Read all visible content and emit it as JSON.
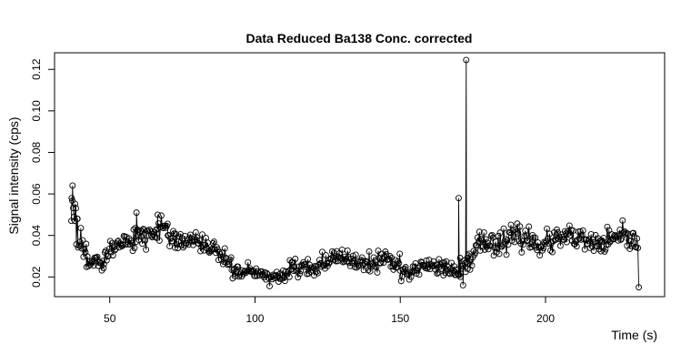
{
  "chart_data": {
    "type": "line",
    "title": "Data Reduced Ba138 Conc. corrected",
    "xlabel": "Time (s)",
    "ylabel": "Signal intensity (cps)",
    "xlim": [
      31,
      241
    ],
    "ylim": [
      0.0105,
      0.128
    ],
    "x_ticks": [
      50,
      100,
      150,
      200
    ],
    "y_ticks": [
      0.02,
      0.04,
      0.06,
      0.08,
      0.1,
      0.12
    ],
    "y_tick_labels": [
      "0.02",
      "0.04",
      "0.06",
      "0.08",
      "0.10",
      "0.12"
    ],
    "grid": false,
    "markers": "open-circle",
    "sample_interval_s": 0.31,
    "x_start": 36.8,
    "segments": [
      {
        "t0": 36.8,
        "t1": 38.5,
        "level": [
          0.05,
          0.055
        ],
        "noise": 0.008,
        "seed": 11
      },
      {
        "t0": 38.5,
        "t1": 42.0,
        "level": [
          0.04,
          0.03
        ],
        "noise": 0.006,
        "seed": 12
      },
      {
        "t0": 42.0,
        "t1": 48.0,
        "level": [
          0.028,
          0.028
        ],
        "noise": 0.0035,
        "seed": 13
      },
      {
        "t0": 48.0,
        "t1": 60.0,
        "level": [
          0.031,
          0.041
        ],
        "noise": 0.0035,
        "seed": 14
      },
      {
        "t0": 60.0,
        "t1": 70.0,
        "level": [
          0.042,
          0.042
        ],
        "noise": 0.0035,
        "seed": 15
      },
      {
        "t0": 70.0,
        "t1": 80.0,
        "level": [
          0.04,
          0.037
        ],
        "noise": 0.0035,
        "seed": 16
      },
      {
        "t0": 80.0,
        "t1": 92.0,
        "level": [
          0.036,
          0.03
        ],
        "noise": 0.0035,
        "seed": 17
      },
      {
        "t0": 92.0,
        "t1": 112.0,
        "level": [
          0.021,
          0.021
        ],
        "noise": 0.0025,
        "seed": 18
      },
      {
        "t0": 112.0,
        "t1": 130.0,
        "level": [
          0.023,
          0.03
        ],
        "noise": 0.003,
        "seed": 19
      },
      {
        "t0": 130.0,
        "t1": 150.0,
        "level": [
          0.029,
          0.026
        ],
        "noise": 0.0035,
        "seed": 20
      },
      {
        "t0": 150.0,
        "t1": 170.0,
        "level": [
          0.023,
          0.025
        ],
        "noise": 0.003,
        "seed": 21
      },
      {
        "t0": 170.0,
        "t1": 176.0,
        "level": [
          0.022,
          0.03
        ],
        "noise": 0.004,
        "seed": 22
      },
      {
        "t0": 176.0,
        "t1": 232.0,
        "level": [
          0.038,
          0.037
        ],
        "noise": 0.004,
        "seed": 23
      }
    ],
    "spikes": [
      {
        "x": 36.9,
        "y": 0.058
      },
      {
        "x": 37.2,
        "y": 0.064
      },
      {
        "x": 38.0,
        "y": 0.047
      },
      {
        "x": 38.9,
        "y": 0.048
      },
      {
        "x": 59.2,
        "y": 0.051
      },
      {
        "x": 66.5,
        "y": 0.05
      },
      {
        "x": 170.1,
        "y": 0.058
      },
      {
        "x": 170.7,
        "y": 0.02
      },
      {
        "x": 171.6,
        "y": 0.016
      },
      {
        "x": 172.7,
        "y": 0.1245
      },
      {
        "x": 173.2,
        "y": 0.024
      },
      {
        "x": 232.1,
        "y": 0.015
      }
    ]
  }
}
